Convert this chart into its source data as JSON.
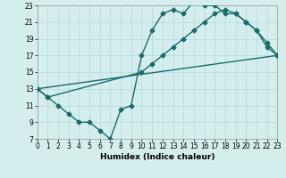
{
  "title": "",
  "xlabel": "Humidex (Indice chaleur)",
  "xlim": [
    0,
    23
  ],
  "ylim": [
    7,
    23
  ],
  "xticks": [
    0,
    1,
    2,
    3,
    4,
    5,
    6,
    7,
    8,
    9,
    10,
    11,
    12,
    13,
    14,
    15,
    16,
    17,
    18,
    19,
    20,
    21,
    22,
    23
  ],
  "yticks": [
    7,
    9,
    11,
    13,
    15,
    17,
    19,
    21,
    23
  ],
  "background_color": "#d4eeee",
  "grid_color": "#b8d8d8",
  "line_color": "#1a6b6b",
  "line1_x": [
    0,
    1,
    2,
    3,
    4,
    5,
    6,
    7,
    8,
    9,
    10,
    11,
    12,
    13,
    14,
    15,
    16,
    17,
    18,
    19,
    20,
    21,
    22,
    23
  ],
  "line1_y": [
    13,
    12,
    11,
    10,
    9,
    9,
    8,
    7,
    10.5,
    11,
    17,
    20,
    22,
    22.5,
    22,
    23.5,
    23,
    23,
    22,
    22,
    21,
    20,
    18,
    17
  ],
  "line2_x": [
    0,
    1,
    10,
    11,
    12,
    13,
    14,
    15,
    16,
    17,
    18,
    19,
    20,
    21,
    22,
    23
  ],
  "line2_y": [
    13,
    12,
    15,
    16,
    17,
    18,
    19,
    20,
    21,
    22,
    22.5,
    22,
    21,
    20,
    18.5,
    17
  ],
  "line3_x": [
    0,
    23
  ],
  "line3_y": [
    13,
    17
  ],
  "marker": "D",
  "markersize": 2.5
}
